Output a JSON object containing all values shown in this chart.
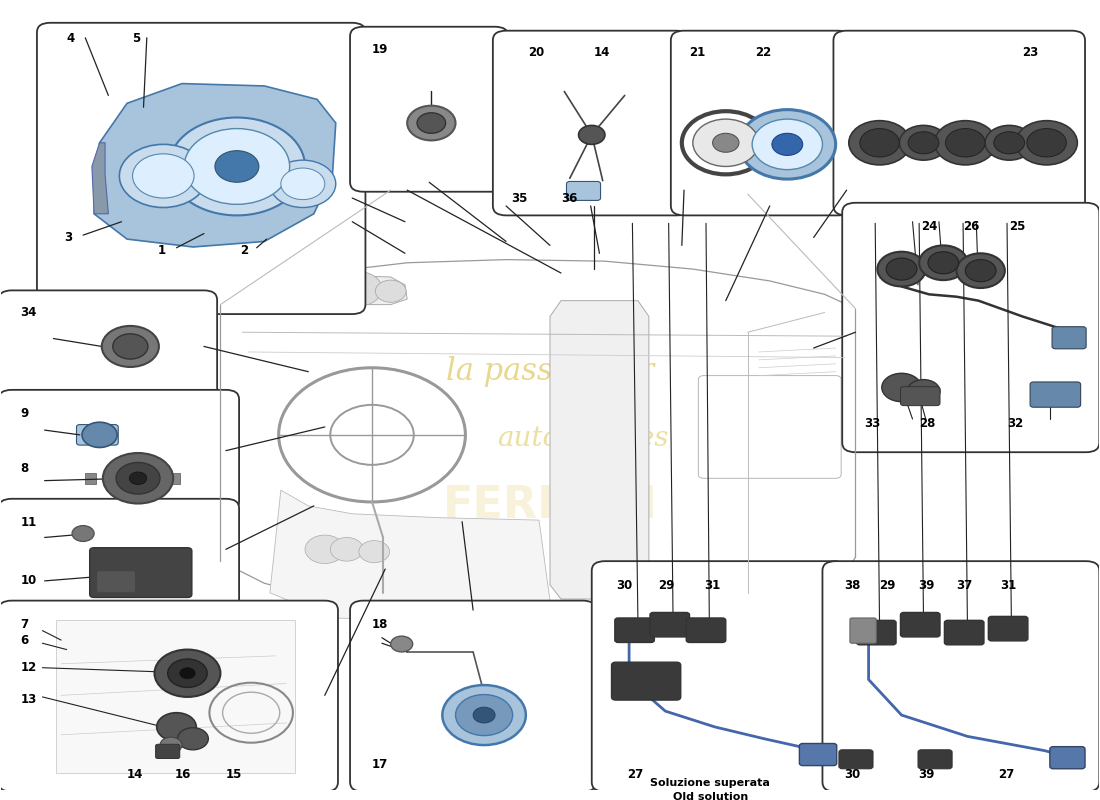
{
  "background_color": "#ffffff",
  "fig_width": 11.0,
  "fig_height": 8.0,
  "watermark_color": "#d4b830",
  "blue_color": "#a8c4dc",
  "dark_color": "#3a3a3a",
  "mid_color": "#777777",
  "light_color": "#cccccc",
  "box_edge": "#333333",
  "line_color": "#222222",
  "old_solution_text_line1": "Soluzione superata",
  "old_solution_text_line2": "Old solution",
  "boxes": {
    "cluster": [
      0.045,
      0.615,
      0.275,
      0.345
    ],
    "p19": [
      0.33,
      0.77,
      0.12,
      0.185
    ],
    "p20_14": [
      0.46,
      0.74,
      0.155,
      0.21
    ],
    "p21_22": [
      0.622,
      0.74,
      0.14,
      0.21
    ],
    "p23": [
      0.77,
      0.74,
      0.205,
      0.21
    ],
    "p34": [
      0.01,
      0.503,
      0.175,
      0.118
    ],
    "p8_9": [
      0.01,
      0.365,
      0.195,
      0.13
    ],
    "p10_11": [
      0.01,
      0.232,
      0.195,
      0.125
    ],
    "footwell": [
      0.01,
      0.01,
      0.285,
      0.218
    ],
    "p17_18": [
      0.33,
      0.01,
      0.2,
      0.218
    ],
    "p24_etc": [
      0.778,
      0.44,
      0.21,
      0.292
    ],
    "p30_old": [
      0.55,
      0.01,
      0.208,
      0.268
    ],
    "p38_new": [
      0.76,
      0.01,
      0.228,
      0.268
    ]
  },
  "callout_lines": [
    [
      0.19,
      0.72,
      0.33,
      0.68
    ],
    [
      0.23,
      0.7,
      0.38,
      0.58
    ],
    [
      0.39,
      0.77,
      0.49,
      0.67
    ],
    [
      0.46,
      0.74,
      0.51,
      0.66
    ],
    [
      0.615,
      0.74,
      0.58,
      0.62
    ],
    [
      0.692,
      0.74,
      0.64,
      0.59
    ],
    [
      0.77,
      0.74,
      0.7,
      0.59
    ],
    [
      0.185,
      0.503,
      0.31,
      0.49
    ],
    [
      0.185,
      0.43,
      0.295,
      0.44
    ],
    [
      0.185,
      0.35,
      0.29,
      0.38
    ],
    [
      0.285,
      0.12,
      0.365,
      0.34
    ]
  ]
}
